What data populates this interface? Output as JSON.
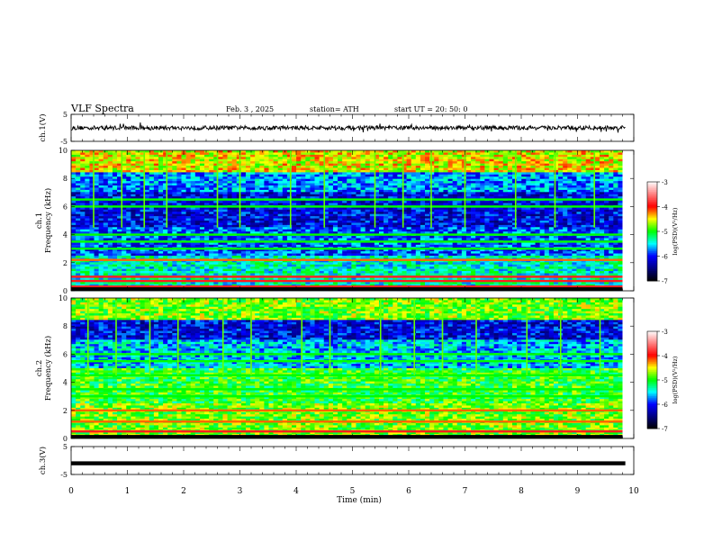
{
  "header": {
    "title": "VLF  Spectra",
    "date": "Feb. 3  , 2025",
    "station": "station= ATH",
    "start_ut": "start  UT  =   20: 50: 0"
  },
  "colorbar": {
    "label": "log(PSD)(V²/Hz)",
    "ticks": [
      "-3",
      "-4",
      "-5",
      "-6",
      "-7"
    ],
    "colors": [
      "#ffffff",
      "#ff7f7f",
      "#ff0000",
      "#ffff00",
      "#00ff00",
      "#00ffff",
      "#0000ff",
      "#000080",
      "#000000"
    ]
  },
  "chart_data": [
    {
      "type": "line",
      "panel": "ch1-waveform",
      "ylabel": "ch.1(V)",
      "ylim": [
        -5,
        5
      ],
      "yticks": [
        "5",
        "-5"
      ],
      "xlim": [
        0,
        10
      ],
      "description_values": {
        "mean": 0.0,
        "amplitude_approx": 1.2
      }
    },
    {
      "type": "heatmap",
      "panel": "ch1-spectrogram",
      "ylabel": "ch.1\nFrequency (kHz)",
      "ylim": [
        0,
        10
      ],
      "yticks": [
        "0",
        "2",
        "4",
        "6",
        "8",
        "10"
      ],
      "xlim": [
        0,
        10
      ],
      "data_end_min": 9.8,
      "bands_khz": [
        0.3,
        0.7,
        1.0,
        2.2,
        3.0,
        3.5,
        4.0,
        6.0,
        6.5
      ],
      "spikes_min": [
        0.4,
        0.9,
        1.3,
        1.7,
        2.6,
        3.0,
        3.9,
        4.5,
        5.4,
        5.9,
        6.4,
        7.0,
        7.9,
        8.6,
        9.3
      ]
    },
    {
      "type": "heatmap",
      "panel": "ch2-spectrogram",
      "ylabel": "ch.2\nFrequency (kHz)",
      "ylim": [
        0,
        10
      ],
      "yticks": [
        "0",
        "2",
        "4",
        "6",
        "8",
        "10"
      ],
      "xlim": [
        0,
        10
      ],
      "data_end_min": 9.8,
      "bands_khz": [
        0.5,
        1.2,
        2.0,
        3.0,
        3.5,
        4.5,
        5.5,
        6.0
      ],
      "spikes_min": [
        0.3,
        0.8,
        1.4,
        1.9,
        2.7,
        3.2,
        4.1,
        4.6,
        5.5,
        6.1,
        6.6,
        7.2,
        8.1,
        8.7,
        9.4
      ]
    },
    {
      "type": "line",
      "panel": "ch3-waveform",
      "ylabel": "ch.3(V)",
      "ylim": [
        -5,
        5
      ],
      "yticks": [
        "5",
        "-5"
      ],
      "xlim": [
        0,
        10
      ],
      "xlabel": "Time  (min)",
      "xticks": [
        "0",
        "1",
        "2",
        "3",
        "4",
        "5",
        "6",
        "7",
        "8",
        "9",
        "10"
      ],
      "description_values": {
        "constant_value": -1.0
      }
    }
  ]
}
